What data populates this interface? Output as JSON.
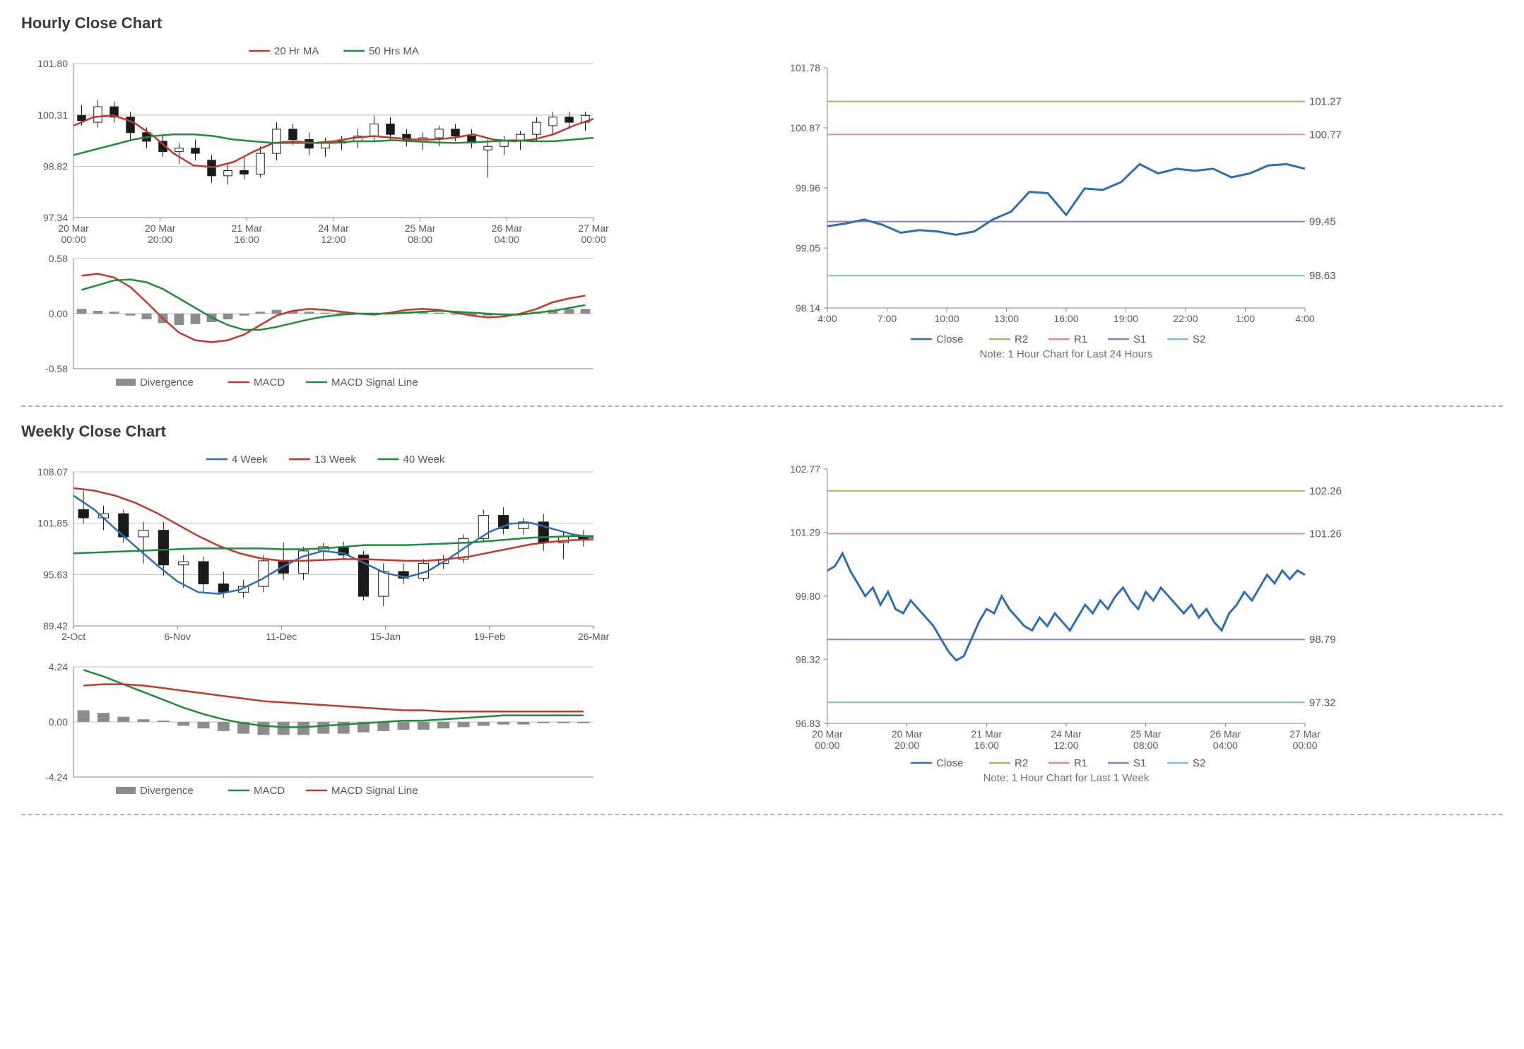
{
  "colors": {
    "grid": "#bfbfbf",
    "axis": "#808080",
    "text": "#595959",
    "bg": "#ffffff",
    "red": "#c0392b",
    "green": "#1e8c3a",
    "blue": "#2e6fb4",
    "purple": "#8e7cc3",
    "pink": "#d98c9c",
    "olive": "#a8b85c",
    "teal": "#7cc0d0",
    "barGray": "#8c8c8c",
    "black": "#1a1a1a"
  },
  "hourly": {
    "title": "Hourly Close Chart",
    "main": {
      "type": "candlestick_with_ma",
      "ylim": [
        97.34,
        101.8
      ],
      "yticks": [
        97.34,
        98.82,
        100.31,
        101.8
      ],
      "xticks": [
        "20 Mar\n00:00",
        "20 Mar\n20:00",
        "21 Mar\n16:00",
        "24 Mar\n12:00",
        "25 Mar\n08:00",
        "26 Mar\n04:00",
        "27 Mar\n00:00"
      ],
      "legend": [
        {
          "label": "20 Hr MA",
          "color": "#c0392b",
          "style": "line"
        },
        {
          "label": "50 Hrs MA",
          "color": "#1e8c3a",
          "style": "line"
        }
      ],
      "ma20": [
        100.0,
        100.25,
        100.3,
        100.1,
        99.7,
        99.2,
        98.85,
        98.8,
        98.95,
        99.25,
        99.5,
        99.55,
        99.5,
        99.55,
        99.65,
        99.7,
        99.65,
        99.6,
        99.6,
        99.65,
        99.75,
        99.6,
        99.55,
        99.6,
        99.75,
        100.0,
        100.2
      ],
      "ma50": [
        99.15,
        99.3,
        99.45,
        99.6,
        99.7,
        99.75,
        99.75,
        99.7,
        99.6,
        99.55,
        99.5,
        99.5,
        99.5,
        99.5,
        99.55,
        99.55,
        99.58,
        99.55,
        99.52,
        99.5,
        99.52,
        99.55,
        99.58,
        99.55,
        99.55,
        99.6,
        99.65
      ],
      "candles": [
        {
          "o": 100.3,
          "h": 100.6,
          "l": 100.0,
          "c": 100.15
        },
        {
          "o": 100.1,
          "h": 100.75,
          "l": 99.95,
          "c": 100.55
        },
        {
          "o": 100.55,
          "h": 100.7,
          "l": 100.1,
          "c": 100.25
        },
        {
          "o": 100.25,
          "h": 100.4,
          "l": 99.6,
          "c": 99.8
        },
        {
          "o": 99.8,
          "h": 99.95,
          "l": 99.35,
          "c": 99.55
        },
        {
          "o": 99.55,
          "h": 99.7,
          "l": 99.1,
          "c": 99.25
        },
        {
          "o": 99.25,
          "h": 99.5,
          "l": 98.9,
          "c": 99.35
        },
        {
          "o": 99.35,
          "h": 99.6,
          "l": 99.0,
          "c": 99.2
        },
        {
          "o": 99.0,
          "h": 99.15,
          "l": 98.35,
          "c": 98.55
        },
        {
          "o": 98.55,
          "h": 98.9,
          "l": 98.3,
          "c": 98.7
        },
        {
          "o": 98.7,
          "h": 99.1,
          "l": 98.45,
          "c": 98.6
        },
        {
          "o": 98.6,
          "h": 99.4,
          "l": 98.5,
          "c": 99.2
        },
        {
          "o": 99.2,
          "h": 100.1,
          "l": 99.0,
          "c": 99.9
        },
        {
          "o": 99.9,
          "h": 100.05,
          "l": 99.45,
          "c": 99.6
        },
        {
          "o": 99.6,
          "h": 99.8,
          "l": 99.15,
          "c": 99.35
        },
        {
          "o": 99.35,
          "h": 99.65,
          "l": 99.1,
          "c": 99.5
        },
        {
          "o": 99.5,
          "h": 99.7,
          "l": 99.3,
          "c": 99.55
        },
        {
          "o": 99.55,
          "h": 99.9,
          "l": 99.35,
          "c": 99.7
        },
        {
          "o": 99.7,
          "h": 100.3,
          "l": 99.55,
          "c": 100.05
        },
        {
          "o": 100.05,
          "h": 100.25,
          "l": 99.6,
          "c": 99.75
        },
        {
          "o": 99.75,
          "h": 99.9,
          "l": 99.4,
          "c": 99.55
        },
        {
          "o": 99.55,
          "h": 99.8,
          "l": 99.3,
          "c": 99.65
        },
        {
          "o": 99.65,
          "h": 100.0,
          "l": 99.4,
          "c": 99.9
        },
        {
          "o": 99.9,
          "h": 100.05,
          "l": 99.55,
          "c": 99.7
        },
        {
          "o": 99.7,
          "h": 99.9,
          "l": 99.35,
          "c": 99.5
        },
        {
          "o": 99.3,
          "h": 99.6,
          "l": 98.5,
          "c": 99.4
        },
        {
          "o": 99.4,
          "h": 99.7,
          "l": 99.15,
          "c": 99.55
        },
        {
          "o": 99.55,
          "h": 99.85,
          "l": 99.3,
          "c": 99.75
        },
        {
          "o": 99.75,
          "h": 100.25,
          "l": 99.55,
          "c": 100.1
        },
        {
          "o": 100.0,
          "h": 100.4,
          "l": 99.75,
          "c": 100.25
        },
        {
          "o": 100.25,
          "h": 100.4,
          "l": 99.9,
          "c": 100.1
        },
        {
          "o": 100.1,
          "h": 100.4,
          "l": 99.85,
          "c": 100.3
        }
      ]
    },
    "macd": {
      "type": "macd",
      "ylim": [
        -0.58,
        0.58
      ],
      "yticks": [
        -0.58,
        0.0,
        0.58
      ],
      "legend": [
        {
          "label": "Divergence",
          "color": "#8c8c8c",
          "style": "bar"
        },
        {
          "label": "MACD",
          "color": "#c0392b",
          "style": "line"
        },
        {
          "label": "MACD Signal Line",
          "color": "#1e8c3a",
          "style": "line"
        }
      ],
      "macdLine": [
        0.4,
        0.42,
        0.38,
        0.28,
        0.12,
        -0.05,
        -0.2,
        -0.28,
        -0.3,
        -0.28,
        -0.22,
        -0.12,
        -0.02,
        0.03,
        0.05,
        0.04,
        0.02,
        0.0,
        -0.01,
        0.01,
        0.04,
        0.05,
        0.04,
        0.01,
        -0.02,
        -0.04,
        -0.03,
        0.0,
        0.05,
        0.12,
        0.16,
        0.19
      ],
      "signal": [
        0.25,
        0.3,
        0.35,
        0.36,
        0.33,
        0.26,
        0.16,
        0.06,
        -0.04,
        -0.12,
        -0.17,
        -0.17,
        -0.14,
        -0.1,
        -0.06,
        -0.03,
        -0.01,
        0.0,
        0.0,
        0.0,
        0.01,
        0.02,
        0.03,
        0.02,
        0.01,
        0.0,
        -0.01,
        -0.01,
        0.01,
        0.03,
        0.06,
        0.09
      ],
      "divergence": [
        0.05,
        0.03,
        0.02,
        -0.02,
        -0.06,
        -0.1,
        -0.12,
        -0.11,
        -0.09,
        -0.06,
        -0.02,
        0.02,
        0.04,
        0.03,
        0.02,
        0.01,
        0.01,
        0.0,
        0.0,
        0.01,
        0.02,
        0.02,
        0.01,
        -0.01,
        -0.02,
        -0.02,
        -0.01,
        0.0,
        0.02,
        0.04,
        0.05,
        0.05
      ]
    },
    "srChart": {
      "type": "line_with_levels",
      "ylim": [
        98.14,
        101.78
      ],
      "yticks": [
        98.14,
        99.05,
        99.96,
        100.87,
        101.78
      ],
      "xticks": [
        "4:00",
        "7:00",
        "10:00",
        "13:00",
        "16:00",
        "19:00",
        "22:00",
        "1:00",
        "4:00"
      ],
      "levels": [
        {
          "name": "R2",
          "value": 101.27,
          "color": "#a8b85c"
        },
        {
          "name": "R1",
          "value": 100.77,
          "color": "#d98c9c"
        },
        {
          "name": "S1",
          "value": 99.45,
          "color": "#8e7cc3"
        },
        {
          "name": "S2",
          "value": 98.63,
          "color": "#7cc0d0"
        }
      ],
      "close": [
        99.38,
        99.42,
        99.48,
        99.4,
        99.28,
        99.32,
        99.3,
        99.25,
        99.3,
        99.48,
        99.6,
        99.9,
        99.88,
        99.55,
        99.95,
        99.93,
        100.05,
        100.32,
        100.18,
        100.25,
        100.22,
        100.25,
        100.12,
        100.18,
        100.3,
        100.32,
        100.25
      ],
      "legend": [
        {
          "label": "Close",
          "color": "#2e6fb4",
          "style": "line"
        },
        {
          "label": "R2",
          "color": "#a8b85c",
          "style": "line"
        },
        {
          "label": "R1",
          "color": "#d98c9c",
          "style": "line"
        },
        {
          "label": "S1",
          "color": "#8e7cc3",
          "style": "line"
        },
        {
          "label": "S2",
          "color": "#7cc0d0",
          "style": "line"
        }
      ],
      "note": "Note: 1 Hour Chart for Last 24 Hours"
    }
  },
  "weekly": {
    "title": "Weekly Close Chart",
    "main": {
      "type": "candlestick_with_ma",
      "ylim": [
        89.42,
        108.07
      ],
      "yticks": [
        89.42,
        95.63,
        101.85,
        108.07
      ],
      "xticks": [
        "2-Oct",
        "6-Nov",
        "11-Dec",
        "15-Jan",
        "19-Feb",
        "26-Mar"
      ],
      "legend": [
        {
          "label": "4 Week",
          "color": "#2e6fb4",
          "style": "line"
        },
        {
          "label": "13 Week",
          "color": "#c0392b",
          "style": "line"
        },
        {
          "label": "40 Week",
          "color": "#1e8c3a",
          "style": "line"
        }
      ],
      "ma4": [
        105.2,
        103.5,
        101.2,
        99.0,
        96.8,
        94.8,
        93.5,
        93.3,
        93.8,
        95.0,
        96.5,
        97.8,
        98.5,
        98.2,
        97.0,
        95.8,
        95.3,
        96.0,
        97.5,
        99.2,
        100.8,
        101.8,
        101.9,
        101.2,
        100.5,
        100.1
      ],
      "ma13": [
        106.1,
        105.8,
        105.2,
        104.3,
        103.1,
        101.7,
        100.3,
        99.1,
        98.2,
        97.6,
        97.3,
        97.3,
        97.4,
        97.5,
        97.5,
        97.4,
        97.3,
        97.3,
        97.5,
        97.8,
        98.3,
        98.8,
        99.3,
        99.6,
        99.8,
        99.9
      ],
      "ma40": [
        98.2,
        98.3,
        98.4,
        98.5,
        98.6,
        98.7,
        98.8,
        98.8,
        98.8,
        98.8,
        98.7,
        98.7,
        98.8,
        99.0,
        99.2,
        99.2,
        99.2,
        99.3,
        99.4,
        99.5,
        99.7,
        99.9,
        100.1,
        100.2,
        100.3,
        100.3
      ],
      "candles": [
        {
          "o": 103.5,
          "h": 105.8,
          "l": 101.8,
          "c": 102.5
        },
        {
          "o": 102.5,
          "h": 104.0,
          "l": 101.0,
          "c": 103.0
        },
        {
          "o": 103.0,
          "h": 103.5,
          "l": 99.5,
          "c": 100.2
        },
        {
          "o": 100.2,
          "h": 102.0,
          "l": 97.0,
          "c": 101.0
        },
        {
          "o": 101.0,
          "h": 102.0,
          "l": 95.5,
          "c": 96.8
        },
        {
          "o": 96.8,
          "h": 98.0,
          "l": 94.0,
          "c": 97.2
        },
        {
          "o": 97.2,
          "h": 97.8,
          "l": 93.5,
          "c": 94.5
        },
        {
          "o": 94.5,
          "h": 96.0,
          "l": 92.8,
          "c": 93.5
        },
        {
          "o": 93.5,
          "h": 95.0,
          "l": 92.8,
          "c": 94.2
        },
        {
          "o": 94.2,
          "h": 98.0,
          "l": 93.5,
          "c": 97.3
        },
        {
          "o": 97.3,
          "h": 99.5,
          "l": 95.0,
          "c": 95.8
        },
        {
          "o": 95.8,
          "h": 99.0,
          "l": 95.0,
          "c": 98.5
        },
        {
          "o": 98.5,
          "h": 99.5,
          "l": 97.5,
          "c": 99.0
        },
        {
          "o": 99.0,
          "h": 99.6,
          "l": 97.5,
          "c": 98.0
        },
        {
          "o": 98.0,
          "h": 98.5,
          "l": 92.5,
          "c": 93.0
        },
        {
          "o": 93.0,
          "h": 97.0,
          "l": 91.8,
          "c": 96.0
        },
        {
          "o": 96.0,
          "h": 97.0,
          "l": 94.5,
          "c": 95.2
        },
        {
          "o": 95.2,
          "h": 97.5,
          "l": 94.8,
          "c": 97.0
        },
        {
          "o": 97.0,
          "h": 98.0,
          "l": 96.3,
          "c": 97.5
        },
        {
          "o": 97.5,
          "h": 100.5,
          "l": 97.0,
          "c": 100.0
        },
        {
          "o": 100.0,
          "h": 103.5,
          "l": 99.5,
          "c": 102.8
        },
        {
          "o": 102.8,
          "h": 103.8,
          "l": 100.5,
          "c": 101.2
        },
        {
          "o": 101.2,
          "h": 102.5,
          "l": 100.5,
          "c": 102.0
        },
        {
          "o": 102.0,
          "h": 103.0,
          "l": 98.5,
          "c": 99.5
        },
        {
          "o": 99.5,
          "h": 100.8,
          "l": 97.5,
          "c": 100.2
        },
        {
          "o": 100.2,
          "h": 101.0,
          "l": 99.0,
          "c": 99.8
        }
      ]
    },
    "macd": {
      "type": "macd",
      "ylim": [
        -4.24,
        4.24
      ],
      "yticks": [
        -4.24,
        0.0,
        4.24
      ],
      "legend": [
        {
          "label": "Divergence",
          "color": "#8c8c8c",
          "style": "bar"
        },
        {
          "label": "MACD",
          "color": "#1e8c3a",
          "style": "line"
        },
        {
          "label": "MACD Signal Line",
          "color": "#c0392b",
          "style": "line"
        }
      ],
      "macdLine": [
        4.0,
        3.5,
        2.9,
        2.3,
        1.7,
        1.1,
        0.6,
        0.2,
        -0.1,
        -0.3,
        -0.4,
        -0.4,
        -0.3,
        -0.2,
        -0.1,
        0.0,
        0.1,
        0.1,
        0.2,
        0.3,
        0.4,
        0.5,
        0.5,
        0.5,
        0.5,
        0.5
      ],
      "signal": [
        2.8,
        2.9,
        2.9,
        2.8,
        2.6,
        2.4,
        2.2,
        2.0,
        1.8,
        1.6,
        1.5,
        1.4,
        1.3,
        1.2,
        1.1,
        1.0,
        0.9,
        0.9,
        0.8,
        0.8,
        0.8,
        0.8,
        0.8,
        0.8,
        0.8,
        0.8
      ],
      "divergence": [
        0.9,
        0.7,
        0.4,
        0.2,
        0.1,
        -0.3,
        -0.5,
        -0.7,
        -0.9,
        -1.0,
        -1.0,
        -1.0,
        -0.9,
        -0.9,
        -0.8,
        -0.7,
        -0.6,
        -0.6,
        -0.5,
        -0.4,
        -0.3,
        -0.2,
        -0.2,
        -0.1,
        -0.1,
        -0.1
      ]
    },
    "srChart": {
      "type": "line_with_levels",
      "ylim": [
        96.83,
        102.77
      ],
      "yticks": [
        96.83,
        98.32,
        99.8,
        101.29,
        102.77
      ],
      "xticks": [
        "20 Mar\n00:00",
        "20 Mar\n20:00",
        "21 Mar\n16:00",
        "24 Mar\n12:00",
        "25 Mar\n08:00",
        "26 Mar\n04:00",
        "27 Mar\n00:00"
      ],
      "levels": [
        {
          "name": "R2",
          "value": 102.26,
          "color": "#a8b85c"
        },
        {
          "name": "R1",
          "value": 101.26,
          "color": "#d98c9c"
        },
        {
          "name": "S1",
          "value": 98.79,
          "color": "#8e7cc3"
        },
        {
          "name": "S2",
          "value": 97.32,
          "color": "#7cc0d0"
        }
      ],
      "close": [
        100.4,
        100.5,
        100.8,
        100.4,
        100.1,
        99.8,
        100.0,
        99.6,
        99.9,
        99.5,
        99.4,
        99.7,
        99.5,
        99.3,
        99.1,
        98.8,
        98.5,
        98.3,
        98.4,
        98.8,
        99.2,
        99.5,
        99.4,
        99.8,
        99.5,
        99.3,
        99.1,
        99.0,
        99.3,
        99.1,
        99.4,
        99.2,
        99.0,
        99.3,
        99.6,
        99.4,
        99.7,
        99.5,
        99.8,
        100.0,
        99.7,
        99.5,
        99.9,
        99.7,
        100.0,
        99.8,
        99.6,
        99.4,
        99.6,
        99.3,
        99.5,
        99.2,
        99.0,
        99.4,
        99.6,
        99.9,
        99.7,
        100.0,
        100.3,
        100.1,
        100.4,
        100.2,
        100.4,
        100.3
      ],
      "legend": [
        {
          "label": "Close",
          "color": "#2e6fb4",
          "style": "line"
        },
        {
          "label": "R2",
          "color": "#a8b85c",
          "style": "line"
        },
        {
          "label": "R1",
          "color": "#d98c9c",
          "style": "line"
        },
        {
          "label": "S1",
          "color": "#8e7cc3",
          "style": "line"
        },
        {
          "label": "S2",
          "color": "#7cc0d0",
          "style": "line"
        }
      ],
      "note": "Note: 1 Hour Chart for Last 1 Week"
    }
  }
}
